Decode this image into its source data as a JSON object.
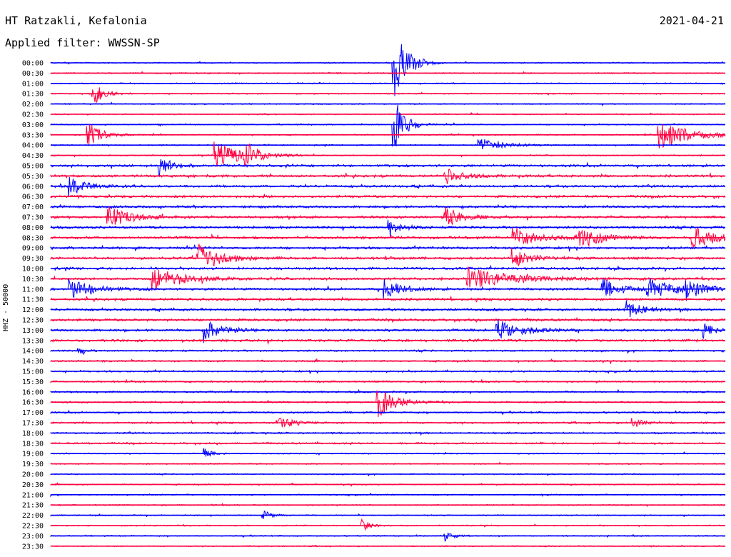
{
  "header": {
    "station": "HT Ratzakli, Kefalonia",
    "date": "2021-04-21",
    "filter": "Applied filter: WWSSN-SP"
  },
  "chart_data": {
    "type": "line",
    "title": "HT Ratzakli, Kefalonia",
    "ylabel": "HHZ - 50000",
    "colors": [
      "#0000ff",
      "#ff0040"
    ],
    "rows": [
      "00:00",
      "00:30",
      "01:00",
      "01:30",
      "02:00",
      "02:30",
      "03:00",
      "03:30",
      "04:00",
      "04:30",
      "05:00",
      "05:30",
      "06:00",
      "06:30",
      "07:00",
      "07:30",
      "08:00",
      "08:30",
      "09:00",
      "09:30",
      "10:00",
      "10:30",
      "11:00",
      "11:30",
      "12:00",
      "12:30",
      "13:00",
      "13:30",
      "14:00",
      "14:30",
      "15:00",
      "15:30",
      "16:00",
      "16:30",
      "17:00",
      "17:30",
      "18:00",
      "18:30",
      "19:00",
      "19:30",
      "20:00",
      "20:30",
      "21:00",
      "21:30",
      "22:00",
      "22:30",
      "23:00",
      "23:30"
    ],
    "events": [
      {
        "row": 0,
        "minute": 15.2,
        "amplitude": 8.0,
        "duration_min": 1.2
      },
      {
        "row": 3,
        "minute": 1.8,
        "amplitude": 2.5,
        "duration_min": 1.0
      },
      {
        "row": 6,
        "minute": 15.2,
        "amplitude": 6.0,
        "duration_min": 1.0
      },
      {
        "row": 7,
        "minute": 1.6,
        "amplitude": 2.5,
        "duration_min": 1.2
      },
      {
        "row": 7,
        "minute": 27.0,
        "amplitude": 2.5,
        "duration_min": 3.0
      },
      {
        "row": 8,
        "minute": 19.0,
        "amplitude": 1.5,
        "duration_min": 2.0
      },
      {
        "row": 9,
        "minute": 7.2,
        "amplitude": 2.5,
        "duration_min": 2.5
      },
      {
        "row": 9,
        "minute": 8.6,
        "amplitude": 2.0,
        "duration_min": 1.2
      },
      {
        "row": 10,
        "minute": 4.8,
        "amplitude": 2.0,
        "duration_min": 1.0
      },
      {
        "row": 11,
        "minute": 17.5,
        "amplitude": 1.5,
        "duration_min": 1.5
      },
      {
        "row": 12,
        "minute": 0.8,
        "amplitude": 1.8,
        "duration_min": 1.5
      },
      {
        "row": 15,
        "minute": 2.5,
        "amplitude": 2.0,
        "duration_min": 2.0
      },
      {
        "row": 15,
        "minute": 17.5,
        "amplitude": 2.0,
        "duration_min": 1.5
      },
      {
        "row": 16,
        "minute": 15.0,
        "amplitude": 2.2,
        "duration_min": 1.0
      },
      {
        "row": 17,
        "minute": 20.5,
        "amplitude": 2.0,
        "duration_min": 2.0
      },
      {
        "row": 17,
        "minute": 23.5,
        "amplitude": 2.0,
        "duration_min": 2.0
      },
      {
        "row": 17,
        "minute": 28.5,
        "amplitude": 2.2,
        "duration_min": 2.0
      },
      {
        "row": 19,
        "minute": 6.5,
        "amplitude": 2.5,
        "duration_min": 2.0
      },
      {
        "row": 19,
        "minute": 20.5,
        "amplitude": 1.8,
        "duration_min": 1.5
      },
      {
        "row": 21,
        "minute": 4.5,
        "amplitude": 2.0,
        "duration_min": 3.0
      },
      {
        "row": 21,
        "minute": 18.5,
        "amplitude": 2.0,
        "duration_min": 4.0
      },
      {
        "row": 22,
        "minute": 0.8,
        "amplitude": 2.0,
        "duration_min": 2.0
      },
      {
        "row": 22,
        "minute": 14.8,
        "amplitude": 2.0,
        "duration_min": 1.5
      },
      {
        "row": 22,
        "minute": 24.5,
        "amplitude": 2.0,
        "duration_min": 1.5
      },
      {
        "row": 22,
        "minute": 26.5,
        "amplitude": 2.0,
        "duration_min": 2.5
      },
      {
        "row": 22,
        "minute": 28.2,
        "amplitude": 2.0,
        "duration_min": 1.5
      },
      {
        "row": 24,
        "minute": 25.5,
        "amplitude": 1.8,
        "duration_min": 1.5
      },
      {
        "row": 26,
        "minute": 6.8,
        "amplitude": 2.0,
        "duration_min": 1.5
      },
      {
        "row": 26,
        "minute": 19.8,
        "amplitude": 2.2,
        "duration_min": 2.0
      },
      {
        "row": 26,
        "minute": 29.0,
        "amplitude": 1.5,
        "duration_min": 0.8
      },
      {
        "row": 28,
        "minute": 1.1,
        "amplitude": 1.2,
        "duration_min": 0.6
      },
      {
        "row": 33,
        "minute": 14.5,
        "amplitude": 3.0,
        "duration_min": 1.5
      },
      {
        "row": 35,
        "minute": 10.0,
        "amplitude": 1.2,
        "duration_min": 1.5
      },
      {
        "row": 35,
        "minute": 25.8,
        "amplitude": 1.2,
        "duration_min": 1.0
      },
      {
        "row": 38,
        "minute": 6.8,
        "amplitude": 1.2,
        "duration_min": 0.6
      },
      {
        "row": 44,
        "minute": 9.4,
        "amplitude": 1.0,
        "duration_min": 0.8
      },
      {
        "row": 45,
        "minute": 13.8,
        "amplitude": 1.2,
        "duration_min": 0.8
      },
      {
        "row": 46,
        "minute": 17.5,
        "amplitude": 1.0,
        "duration_min": 0.8
      }
    ]
  }
}
